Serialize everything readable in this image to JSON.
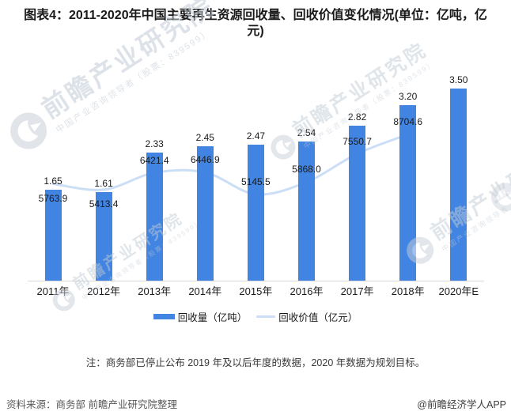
{
  "header": {
    "title_lines": [
      "图表4：2011-2020年中国主要再生资源回收量、回收价值变化情况(单位：亿吨，亿",
      "元)"
    ],
    "title_full": "图表4：2011-2020年中国主要再生资源回收量、回收价值变化情况(单位：亿吨，亿元)"
  },
  "chart_data": {
    "type": "bar",
    "title": "图表4：2011-2020年中国主要再生资源回收量、回收价值变化情况(单位：亿吨，亿元)",
    "categories": [
      "2011年",
      "2012年",
      "2013年",
      "2014年",
      "2015年",
      "2016年",
      "2017年",
      "2018年",
      "2020年E"
    ],
    "series": [
      {
        "name": "回收量（亿吨）",
        "type": "bar",
        "values": [
          1.65,
          1.61,
          2.33,
          2.45,
          2.47,
          2.54,
          2.82,
          3.2,
          3.5
        ],
        "labels": [
          "1.65",
          "1.61",
          "2.33",
          "2.45",
          "2.47",
          "2.54",
          "2.82",
          "3.20",
          "3.50"
        ]
      },
      {
        "name": "回收价值（亿元）",
        "type": "line",
        "values": [
          5763.9,
          5413.4,
          6421.4,
          6446.9,
          5145.5,
          5868.0,
          7550.7,
          8704.6
        ],
        "labels": [
          "5763.9",
          "5413.4",
          "6421.4",
          "6446.9",
          "5145.5",
          "5868.0",
          "7550.7",
          "8704.6"
        ],
        "label_side": [
          "below",
          "below",
          "above",
          "above",
          "above",
          "above",
          "above",
          "above"
        ]
      }
    ],
    "axes": {
      "x_visible": true,
      "y_visible": false,
      "bar_axis_min": 0,
      "line_axis_min": 0
    },
    "legend_position": "bottom",
    "grid": false,
    "smooth_line": true,
    "note": "line series has no 2020E data point"
  },
  "legend": {
    "bar_label": "回收量（亿吨）",
    "line_label": "回收价值（亿元）"
  },
  "note": "注：商务部已停止公布 2019 年及以后年度的数据，2020 年数据为规划目标。",
  "footer": {
    "source": "资料来源：商务部 前瞻产业研究院整理",
    "credit": "@前瞻经济学人APP"
  },
  "watermark": {
    "text": "前瞻产业研究院",
    "subtext": "中国产业咨询领导者（股票：839599）"
  },
  "colors": {
    "bar": "#4284E1",
    "line": "#CBDEF6",
    "axis": "#D8D8D8",
    "watermark_text": "#C3CCD6",
    "watermark_logo": "#C9D0D8",
    "title_text": "#1A1A1A",
    "note_text": "#3A3A3A",
    "source_text": "#595959"
  }
}
